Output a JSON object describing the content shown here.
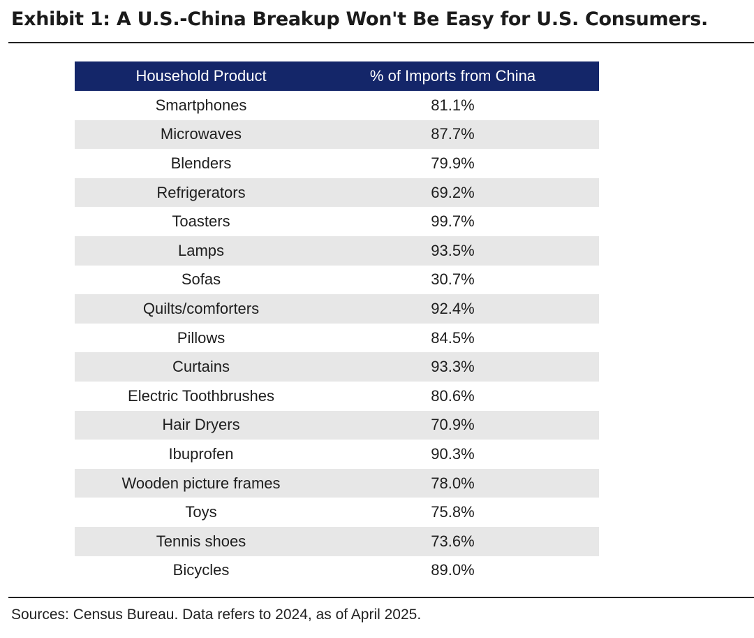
{
  "title": "Exhibit 1: A U.S.-China Breakup Won't Be Easy for U.S. Consumers.",
  "table": {
    "headers": [
      "Household Product",
      "% of Imports from China"
    ],
    "rows": [
      [
        "Smartphones",
        "81.1%"
      ],
      [
        "Microwaves",
        "87.7%"
      ],
      [
        "Blenders",
        "79.9%"
      ],
      [
        "Refrigerators",
        "69.2%"
      ],
      [
        "Toasters",
        "99.7%"
      ],
      [
        "Lamps",
        "93.5%"
      ],
      [
        "Sofas",
        "30.7%"
      ],
      [
        "Quilts/comforters",
        "92.4%"
      ],
      [
        "Pillows",
        "84.5%"
      ],
      [
        "Curtains",
        "93.3%"
      ],
      [
        "Electric Toothbrushes",
        "80.6%"
      ],
      [
        "Hair Dryers",
        "70.9%"
      ],
      [
        "Ibuprofen",
        "90.3%"
      ],
      [
        "Wooden picture frames",
        "78.0%"
      ],
      [
        "Toys",
        "75.8%"
      ],
      [
        "Tennis shoes",
        "73.6%"
      ],
      [
        "Bicycles",
        "89.0%"
      ]
    ]
  },
  "sources": "Sources: Census Bureau. Data refers to 2024, as of April 2025.",
  "colors": {
    "header_background": "#142669",
    "header_text": "#ffffff",
    "stripe_background": "#e7e7e7"
  }
}
